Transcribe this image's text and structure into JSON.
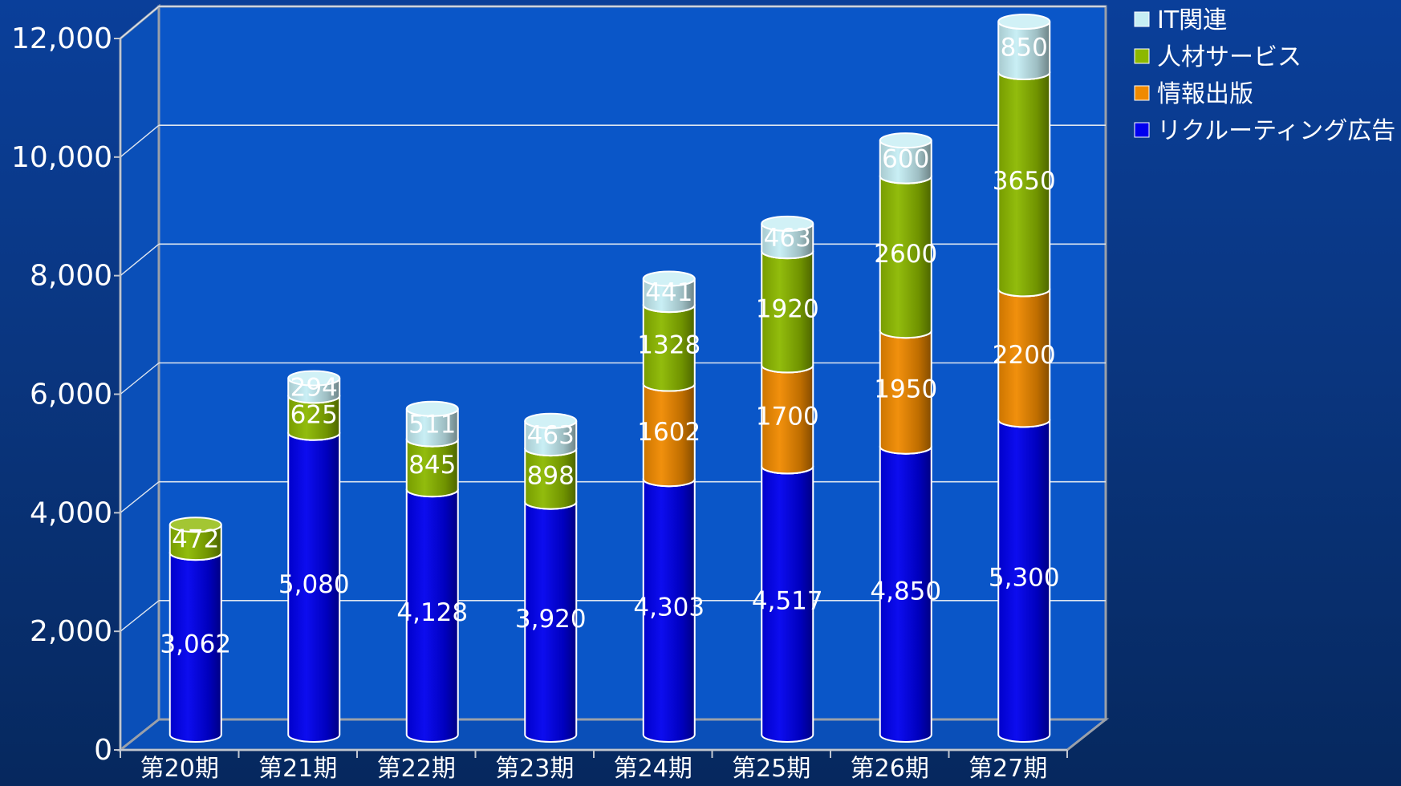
{
  "chart_data": {
    "type": "bar",
    "stacked": true,
    "style": "3d-cylinder",
    "title": "",
    "xlabel": "",
    "ylabel": "",
    "ylim": [
      0,
      12000
    ],
    "yticks": [
      0,
      2000,
      4000,
      6000,
      8000,
      10000,
      12000
    ],
    "ytick_labels": [
      "0",
      "2,000",
      "4,000",
      "6,000",
      "8,000",
      "10,000",
      "12,000"
    ],
    "grid": true,
    "legend_position": "top-right",
    "categories": [
      "第20期",
      "第21期",
      "第22期",
      "第23期",
      "第24期",
      "第25期",
      "第26期",
      "第27期"
    ],
    "series": [
      {
        "name": "リクルーティング広告",
        "color": "#0000ee",
        "values": [
          3062,
          5080,
          4128,
          3920,
          4303,
          4517,
          4850,
          5300
        ],
        "labels": [
          "3,062",
          "5,080",
          "4,128",
          "3,920",
          "4,303",
          "4,517",
          "4,850",
          "5,300"
        ]
      },
      {
        "name": "情報出版",
        "color": "#f08a00",
        "values": [
          0,
          0,
          0,
          0,
          1602,
          1700,
          1950,
          2200
        ],
        "labels": [
          "",
          "",
          "",
          "",
          "1602",
          "1700",
          "1950",
          "2200"
        ]
      },
      {
        "name": "人材サービス",
        "color": "#8cb800",
        "values": [
          472,
          625,
          845,
          898,
          1328,
          1920,
          2600,
          3650
        ],
        "labels": [
          "472",
          "625",
          "845",
          "898",
          "1328",
          "1920",
          "2600",
          "3650"
        ]
      },
      {
        "name": "IT関連",
        "color": "#c6eef4",
        "values": [
          0,
          294,
          511,
          463,
          441,
          463,
          600,
          850
        ],
        "labels": [
          "",
          "294",
          "511",
          "463",
          "441",
          "463",
          "600",
          "850"
        ]
      }
    ]
  }
}
